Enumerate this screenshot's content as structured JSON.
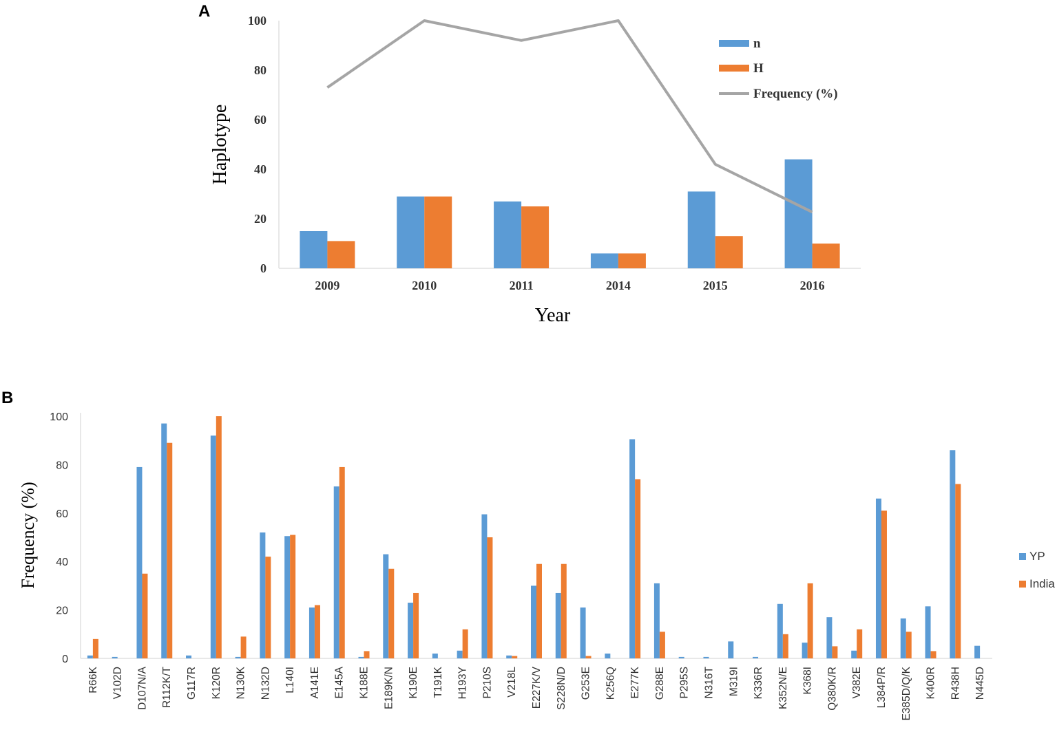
{
  "panels": {
    "a_label": "A",
    "b_label": "B"
  },
  "colors": {
    "blue": "#5b9bd5",
    "orange": "#ed7d31",
    "gray": "#a5a5a5",
    "axis": "#d9d9d9"
  },
  "chart_data": [
    {
      "type": "bar",
      "panel": "A",
      "title": "",
      "xlabel": "Year",
      "ylabel": "Haplotype",
      "ylim": [
        0,
        100
      ],
      "yticks": [
        0,
        20,
        40,
        60,
        80,
        100
      ],
      "categories": [
        "2009",
        "2010",
        "2011",
        "2014",
        "2015",
        "2016"
      ],
      "series": [
        {
          "name": "n",
          "kind": "bar",
          "color": "#5b9bd5",
          "values": [
            15,
            29,
            27,
            6,
            31,
            44
          ]
        },
        {
          "name": "H",
          "kind": "bar",
          "color": "#ed7d31",
          "values": [
            11,
            29,
            25,
            6,
            13,
            10
          ]
        },
        {
          "name": "Frequency (%)",
          "kind": "line",
          "color": "#a5a5a5",
          "values": [
            73,
            100,
            92,
            100,
            42,
            22.7
          ]
        }
      ],
      "legend": "right"
    },
    {
      "type": "bar",
      "panel": "B",
      "title": "",
      "xlabel": "",
      "ylabel": "Frequency (%)",
      "ylim": [
        0,
        100
      ],
      "yticks": [
        0,
        20,
        40,
        60,
        80,
        100
      ],
      "categories": [
        "R66K",
        "V102D",
        "D107N/A",
        "R112K/T",
        "G117R",
        "K120R",
        "N130K",
        "N132D",
        "L140I",
        "A141E",
        "E145A",
        "K188E",
        "E189K/N",
        "K190E",
        "T191K",
        "H193Y",
        "P210S",
        "V218L",
        "E227K/V",
        "S228N/D",
        "G253E",
        "K256Q",
        "E277K",
        "G288E",
        "P295S",
        "N316T",
        "M319I",
        "K336R",
        "K352N/E",
        "K368I",
        "Q380K/R",
        "V382E",
        "L384P/R",
        "E385D/Q/K",
        "K400R",
        "R438H",
        "N445D"
      ],
      "series": [
        {
          "name": "YP",
          "color": "#5b9bd5",
          "values": [
            1.2,
            0.6,
            79,
            97,
            1.2,
            92,
            0.6,
            52,
            50.5,
            21,
            71,
            0.6,
            43,
            23,
            2,
            3.2,
            59.5,
            1.2,
            30,
            27,
            21,
            2,
            90.5,
            31,
            0.6,
            0.6,
            7,
            0.6,
            22.5,
            6.5,
            17,
            3.2,
            66,
            16.5,
            21.5,
            86,
            5.2
          ]
        },
        {
          "name": "India",
          "color": "#ed7d31",
          "values": [
            8,
            0,
            35,
            89,
            0,
            100,
            9,
            42,
            51,
            22,
            79,
            3,
            37,
            27,
            0,
            12,
            50,
            1,
            39,
            39,
            1,
            0,
            74,
            11,
            0,
            0,
            0,
            0,
            10,
            31,
            5,
            12,
            61,
            11,
            3,
            72,
            0
          ]
        }
      ],
      "legend": "right"
    }
  ]
}
